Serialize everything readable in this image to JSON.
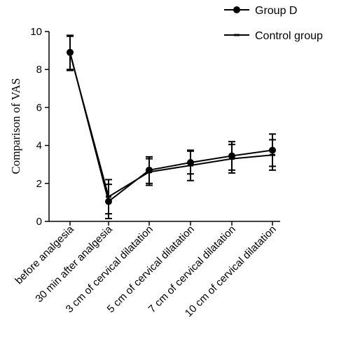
{
  "chart_data": {
    "type": "line",
    "title": "",
    "xlabel": "",
    "ylabel": "Comparison of VAS",
    "ylim": [
      0,
      10
    ],
    "yticks": [
      0,
      2,
      4,
      6,
      8,
      10
    ],
    "categories": [
      "before analgesia",
      "30 min after analgesia",
      "3 cm of cervical dilatation",
      "5 cm of cervical dilatation",
      "7 cm of cervical dilatation",
      "10 cm of cervical dilatation"
    ],
    "series": [
      {
        "name": "Group D",
        "marker": "circle",
        "values": [
          8.9,
          1.05,
          2.7,
          3.1,
          3.45,
          3.75
        ],
        "error": [
          0.9,
          0.9,
          0.7,
          0.6,
          0.75,
          0.85
        ]
      },
      {
        "name": "Control group",
        "marker": "dash",
        "values": [
          8.85,
          1.3,
          2.6,
          2.95,
          3.3,
          3.5
        ],
        "error": [
          0.9,
          0.9,
          0.7,
          0.8,
          0.75,
          0.8
        ]
      }
    ],
    "legend_position": "top-right",
    "grid": false,
    "color": "#000000"
  }
}
